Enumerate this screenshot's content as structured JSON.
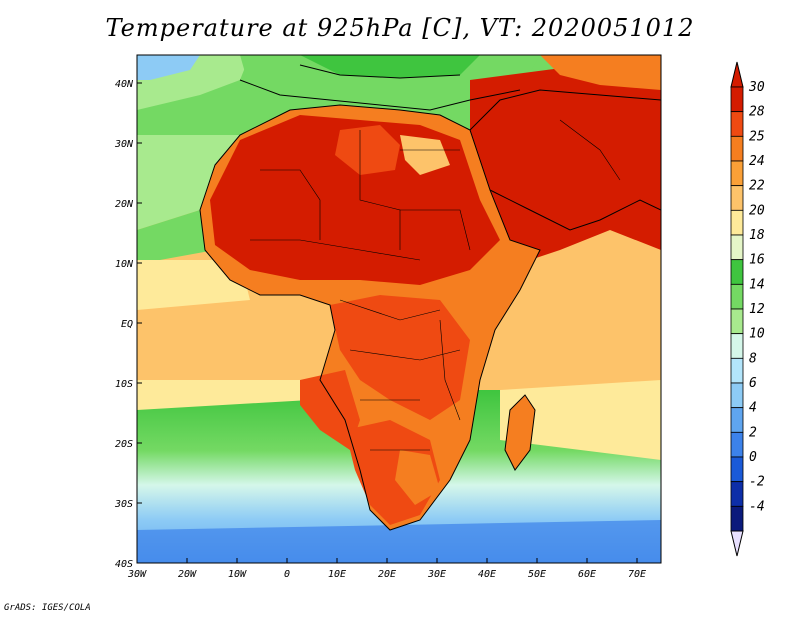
{
  "title": "Temperature at 925hPa [C], VT: 2020051012",
  "credit": "GrADS: IGES/COLA",
  "map": {
    "lat_labels": [
      "40N",
      "30N",
      "20N",
      "10N",
      "EQ",
      "10S",
      "20S",
      "30S",
      "40S"
    ],
    "lon_labels": [
      "30W",
      "20W",
      "10W",
      "0",
      "10E",
      "20E",
      "30E",
      "40E",
      "50E",
      "60E",
      "70E"
    ],
    "lon_range_deg": [
      -30,
      75
    ],
    "lat_range_deg": [
      -40,
      45
    ]
  },
  "colorbar": {
    "labels": [
      "30",
      "28",
      "25",
      "24",
      "22",
      "20",
      "18",
      "16",
      "14",
      "12",
      "10",
      "8",
      "6",
      "4",
      "2",
      "0",
      "-2",
      "-4"
    ],
    "colors": [
      "#d41c00",
      "#ef4a12",
      "#f57e20",
      "#faa037",
      "#fdc36a",
      "#feea9a",
      "#e5f6c8",
      "#3fc53f",
      "#74d963",
      "#a8ea8e",
      "#d5f7ea",
      "#b3e5fb",
      "#8dcbf5",
      "#5fa5ef",
      "#3c82ea",
      "#1a5ad8",
      "#0d2ea8",
      "#0b1a7c"
    ],
    "top_arrow_color": "#d41c00",
    "bottom_arrow_color": "#e8e0ff"
  }
}
